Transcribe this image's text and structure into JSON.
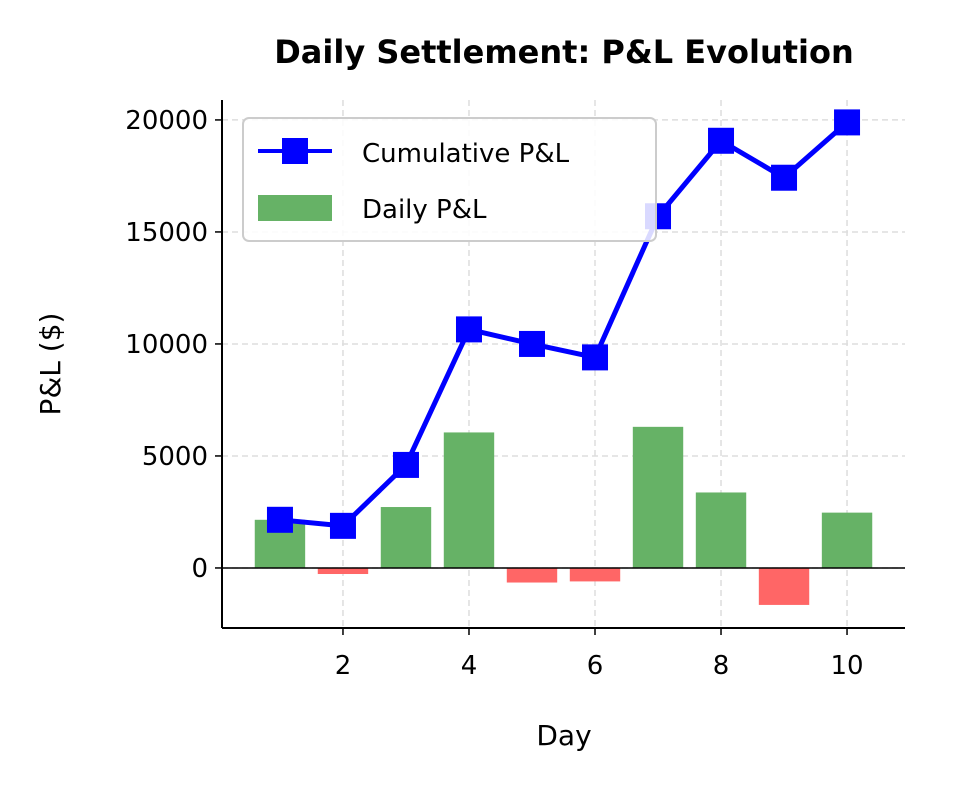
{
  "chart_data": {
    "type": "bar+line",
    "title": "Daily Settlement: P&L Evolution",
    "xlabel": "Day",
    "ylabel": "P&L ($)",
    "x": [
      1,
      2,
      3,
      4,
      5,
      6,
      7,
      8,
      9,
      10
    ],
    "xticks": [
      2,
      4,
      6,
      8,
      10
    ],
    "yticks": [
      0,
      5000,
      10000,
      15000,
      20000
    ],
    "xlim": [
      0.08,
      10.92
    ],
    "ylim": [
      -2680,
      20890
    ],
    "grid": true,
    "legend_position": "top-left",
    "series": [
      {
        "name": "Cumulative P&L",
        "type": "line",
        "marker": "square",
        "color": "#0000ff",
        "values": [
          2150,
          1880,
          4600,
          10650,
          10000,
          9400,
          15700,
          19070,
          17420,
          19890
        ]
      },
      {
        "name": "Daily P&L",
        "type": "bar",
        "color_positive": "#66b266",
        "color_negative": "#ff6666",
        "values": [
          2150,
          -270,
          2720,
          6050,
          -650,
          -600,
          6300,
          3370,
          -1650,
          2470
        ]
      }
    ]
  }
}
